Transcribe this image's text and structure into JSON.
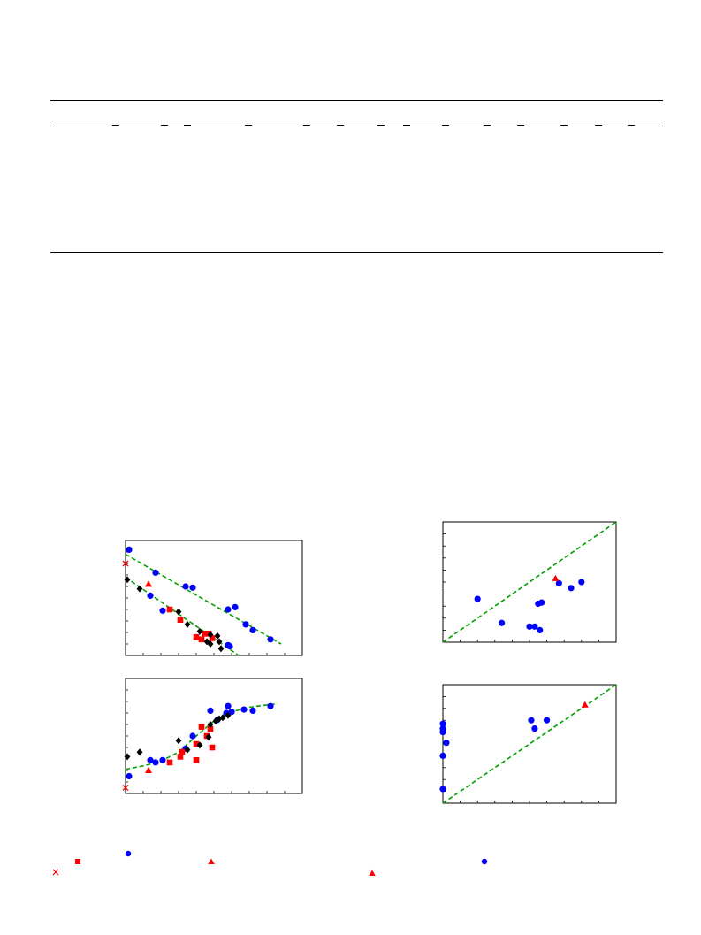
{
  "colors": {
    "blue": "#0000ff",
    "red": "#ff0000",
    "black": "#000000",
    "green": "#00a000"
  },
  "legend_markers": [
    "circle",
    "square",
    "triangle",
    "cross",
    "diamond"
  ],
  "chart_data": [
    {
      "type": "scatter",
      "id": "top-left",
      "xlim": [
        0,
        10
      ],
      "ylim": [
        0,
        10
      ],
      "xticks": 10,
      "yticks": 10,
      "grid": false,
      "series": [
        {
          "marker": "circle",
          "color": "#0000ff",
          "points": [
            [
              0.2,
              9.2
            ],
            [
              1.7,
              7.2
            ],
            [
              1.4,
              5.2
            ],
            [
              2.1,
              3.9
            ],
            [
              3.4,
              6.0
            ],
            [
              3.8,
              5.9
            ],
            [
              5.8,
              4.0
            ],
            [
              6.2,
              4.2
            ],
            [
              6.8,
              2.7
            ],
            [
              7.2,
              2.2
            ],
            [
              8.2,
              1.4
            ],
            [
              5.8,
              0.9
            ],
            [
              5.9,
              0.8
            ]
          ]
        },
        {
          "marker": "square",
          "color": "#ff0000",
          "points": [
            [
              2.5,
              4.0
            ],
            [
              3.1,
              3.1
            ],
            [
              4.0,
              1.6
            ],
            [
              4.3,
              1.4
            ],
            [
              4.5,
              1.9
            ],
            [
              4.7,
              1.9
            ],
            [
              4.9,
              1.5
            ]
          ]
        },
        {
          "marker": "triangle",
          "color": "#ff0000",
          "points": [
            [
              1.3,
              6.2
            ]
          ]
        },
        {
          "marker": "cross",
          "color": "#ff0000",
          "points": [
            [
              0.0,
              8.0
            ]
          ]
        },
        {
          "marker": "diamond",
          "color": "#000000",
          "points": [
            [
              0.1,
              6.6
            ],
            [
              0.8,
              5.8
            ],
            [
              3.0,
              3.8
            ],
            [
              3.5,
              2.7
            ],
            [
              4.2,
              2.1
            ],
            [
              4.8,
              1.8
            ],
            [
              5.2,
              1.7
            ],
            [
              5.4,
              0.6
            ],
            [
              4.8,
              1.0
            ],
            [
              4.6,
              1.2
            ],
            [
              5.3,
              1.2
            ]
          ]
        }
      ],
      "fits": [
        {
          "color": "#00a000",
          "points": [
            [
              0,
              8.8
            ],
            [
              8.8,
              1.0
            ]
          ]
        },
        {
          "color": "#00a000",
          "points": [
            [
              0,
              6.8
            ],
            [
              6.4,
              0.0
            ]
          ]
        }
      ]
    },
    {
      "type": "scatter",
      "id": "bottom-left",
      "xlim": [
        0,
        10
      ],
      "ylim": [
        0,
        10
      ],
      "xticks": 10,
      "yticks": 10,
      "grid": false,
      "series": [
        {
          "marker": "circle",
          "color": "#0000ff",
          "points": [
            [
              0.2,
              1.5
            ],
            [
              1.4,
              2.9
            ],
            [
              1.7,
              2.7
            ],
            [
              2.1,
              2.9
            ],
            [
              3.4,
              3.9
            ],
            [
              3.8,
              5.0
            ],
            [
              4.8,
              7.2
            ],
            [
              5.8,
              7.6
            ],
            [
              5.7,
              7.0
            ],
            [
              6.7,
              7.3
            ],
            [
              7.2,
              7.2
            ],
            [
              8.2,
              7.6
            ],
            [
              5.2,
              6.4
            ],
            [
              6.0,
              7.1
            ]
          ]
        },
        {
          "marker": "square",
          "color": "#ff0000",
          "points": [
            [
              2.5,
              2.7
            ],
            [
              3.1,
              3.2
            ],
            [
              4.0,
              4.3
            ],
            [
              4.3,
              5.8
            ],
            [
              4.6,
              5.0
            ],
            [
              4.8,
              5.6
            ],
            [
              4.0,
              2.9
            ],
            [
              4.9,
              4.0
            ],
            [
              3.2,
              3.6
            ]
          ]
        },
        {
          "marker": "triangle",
          "color": "#ff0000",
          "points": [
            [
              1.3,
              2.0
            ]
          ]
        },
        {
          "marker": "cross",
          "color": "#ff0000",
          "points": [
            [
              0.0,
              0.5
            ]
          ]
        },
        {
          "marker": "diamond",
          "color": "#000000",
          "points": [
            [
              0.1,
              3.2
            ],
            [
              0.8,
              3.6
            ],
            [
              3.0,
              4.6
            ],
            [
              3.5,
              3.8
            ],
            [
              4.2,
              4.2
            ],
            [
              4.7,
              4.9
            ],
            [
              5.1,
              6.3
            ],
            [
              5.5,
              6.6
            ],
            [
              5.8,
              6.8
            ],
            [
              4.8,
              6.0
            ],
            [
              5.3,
              6.5
            ]
          ]
        }
      ],
      "fits": [
        {
          "color": "#00a000",
          "curve": "sigmoid",
          "points": [
            [
              0,
              2.1
            ],
            [
              1,
              2.4
            ],
            [
              2,
              2.8
            ],
            [
              3,
              3.6
            ],
            [
              4,
              5.0
            ],
            [
              5,
              6.3
            ],
            [
              6,
              7.1
            ],
            [
              7,
              7.5
            ],
            [
              8,
              7.7
            ],
            [
              8.6,
              7.8
            ]
          ]
        }
      ]
    },
    {
      "type": "scatter",
      "id": "top-right",
      "xlim": [
        0,
        10
      ],
      "ylim": [
        0,
        10
      ],
      "xticks": 10,
      "yticks": 10,
      "grid": false,
      "series": [
        {
          "marker": "circle",
          "color": "#0000ff",
          "points": [
            [
              2.0,
              3.6
            ],
            [
              3.4,
              1.6
            ],
            [
              5.0,
              1.3
            ],
            [
              5.3,
              1.3
            ],
            [
              5.6,
              1.0
            ],
            [
              5.5,
              3.2
            ],
            [
              5.7,
              3.3
            ],
            [
              6.7,
              4.9
            ],
            [
              7.4,
              4.5
            ],
            [
              8.0,
              5.0
            ]
          ]
        },
        {
          "marker": "triangle",
          "color": "#ff0000",
          "points": [
            [
              6.5,
              5.3
            ]
          ]
        }
      ],
      "fits": [
        {
          "color": "#00a000",
          "points": [
            [
              0,
              0
            ],
            [
              10,
              10
            ]
          ]
        }
      ]
    },
    {
      "type": "scatter",
      "id": "bottom-right",
      "xlim": [
        0,
        10
      ],
      "ylim": [
        0,
        10
      ],
      "xticks": 10,
      "yticks": 10,
      "grid": false,
      "series": [
        {
          "marker": "circle",
          "color": "#0000ff",
          "points": [
            [
              0.0,
              1.2
            ],
            [
              0.0,
              4.0
            ],
            [
              0.0,
              6.3
            ],
            [
              0.0,
              6.7
            ],
            [
              0.0,
              6.0
            ],
            [
              0.2,
              5.1
            ],
            [
              5.1,
              7.0
            ],
            [
              5.3,
              6.3
            ],
            [
              6.0,
              7.0
            ]
          ]
        },
        {
          "marker": "triangle",
          "color": "#ff0000",
          "points": [
            [
              8.2,
              8.3
            ]
          ]
        }
      ],
      "fits": [
        {
          "color": "#00a000",
          "points": [
            [
              0,
              0
            ],
            [
              10,
              10
            ]
          ]
        }
      ]
    }
  ]
}
